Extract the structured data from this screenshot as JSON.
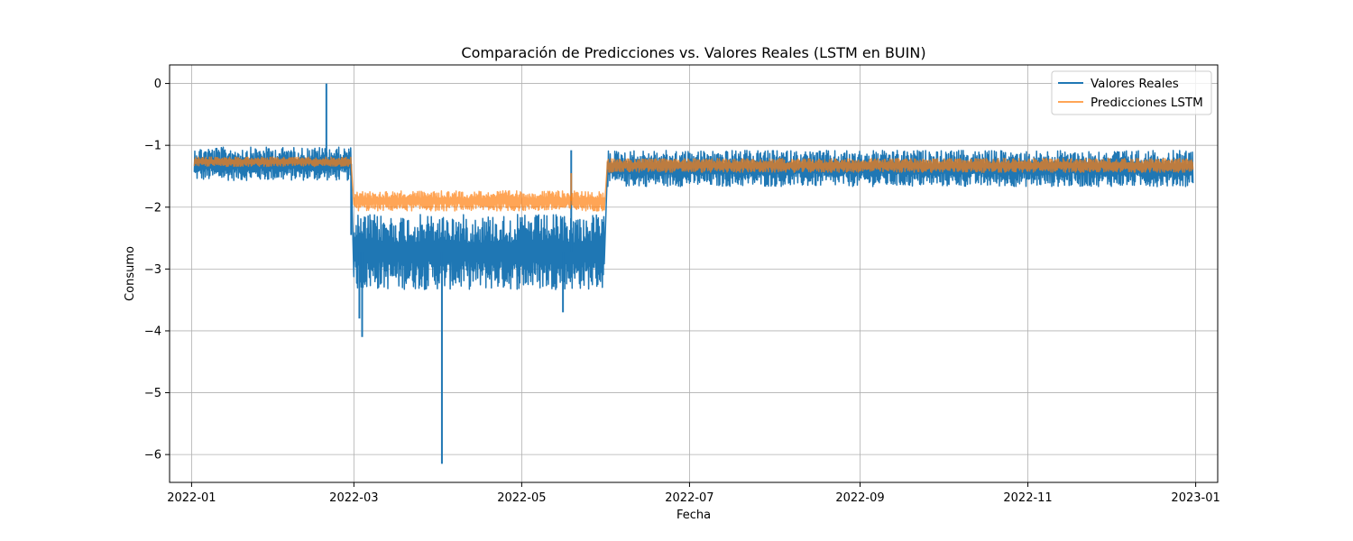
{
  "chart_data": {
    "type": "line",
    "title": "Comparación de Predicciones vs. Valores Reales (LSTM en BUIN)",
    "xlabel": "Fecha",
    "ylabel": "Consumo",
    "x_ticks": [
      "2022-01",
      "2022-03",
      "2022-05",
      "2022-07",
      "2022-09",
      "2022-11",
      "2023-01"
    ],
    "y_ticks": [
      0,
      -1,
      -2,
      -3,
      -4,
      -5,
      -6
    ],
    "xlim": [
      "2021-12-24",
      "2023-01-09"
    ],
    "ylim": [
      -6.45,
      0.3
    ],
    "grid": true,
    "legend": "top-right",
    "series": [
      {
        "name": "Valores Reales",
        "color": "#1f77b4",
        "segments": [
          {
            "start": "2022-01-02",
            "end": "2022-02-28",
            "low": -1.6,
            "high": -1.0
          },
          {
            "start": "2022-03-01",
            "end": "2022-05-31",
            "low": -3.4,
            "high": -2.05
          },
          {
            "start": "2022-06-01",
            "end": "2022-12-31",
            "low": -1.7,
            "high": -1.05
          }
        ],
        "spikes": [
          {
            "date": "2022-02-19",
            "value": 0.0
          },
          {
            "date": "2022-02-28",
            "value": -2.45
          },
          {
            "date": "2022-03-03",
            "value": -3.8
          },
          {
            "date": "2022-03-04",
            "value": -4.1
          },
          {
            "date": "2022-04-02",
            "value": -6.15
          },
          {
            "date": "2022-05-16",
            "value": -3.7
          },
          {
            "date": "2022-05-19",
            "value": -1.08
          }
        ]
      },
      {
        "name": "Predicciones LSTM",
        "color": "#ff7f0e",
        "segments": [
          {
            "start": "2022-01-02",
            "end": "2022-02-28",
            "low": -1.35,
            "high": -1.18
          },
          {
            "start": "2022-03-01",
            "end": "2022-05-31",
            "low": -2.08,
            "high": -1.72
          },
          {
            "start": "2022-06-01",
            "end": "2022-12-31",
            "low": -1.45,
            "high": -1.2
          }
        ],
        "spikes": [
          {
            "date": "2022-05-19",
            "value": -1.45
          }
        ]
      }
    ]
  }
}
